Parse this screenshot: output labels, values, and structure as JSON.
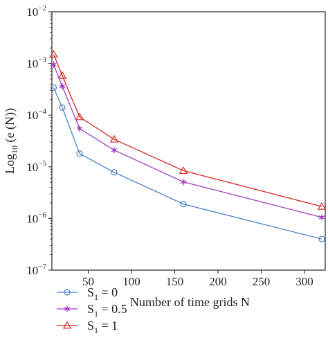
{
  "chart_data": {
    "type": "line",
    "ylabel": "Log10 (e (N))",
    "xlabel": "Number of time grids N",
    "xlim": [
      8,
      324
    ],
    "ylim": [
      1e-07,
      0.01
    ],
    "yscale": "log",
    "grid": false,
    "legend_position": "bottom-left",
    "x": [
      10,
      20,
      40,
      80,
      160,
      320
    ],
    "x_ticks": [
      50,
      100,
      150,
      200,
      250,
      300
    ],
    "y_ticks": [
      {
        "value": 1e-07,
        "base": "10",
        "exp": "−7"
      },
      {
        "value": 1e-06,
        "base": "10",
        "exp": "−6"
      },
      {
        "value": 1e-05,
        "base": "10",
        "exp": "−5"
      },
      {
        "value": 0.0001,
        "base": "10",
        "exp": "−4"
      },
      {
        "value": 0.001,
        "base": "10",
        "exp": "−3"
      },
      {
        "value": 0.01,
        "base": "10",
        "exp": "−2"
      }
    ],
    "series": [
      {
        "name": "S1 = 0",
        "sub": "1",
        "rest": " = 0",
        "marker": "circle",
        "color": "#4a7fc1",
        "values": [
          0.00034,
          0.00014,
          1.8e-05,
          7.8e-06,
          1.9e-06,
          4e-07
        ]
      },
      {
        "name": "S1 = 0.5",
        "sub": "1",
        "rest": " = 0.5",
        "marker": "star",
        "color": "#a040c8",
        "values": [
          0.00095,
          0.00036,
          5.5e-05,
          2.1e-05,
          5.1e-06,
          1.05e-06
        ]
      },
      {
        "name": "S1 = 1",
        "sub": "1",
        "rest": " = 1",
        "marker": "triangle",
        "color": "#d42a22",
        "values": [
          0.0015,
          0.00058,
          9.2e-05,
          3.4e-05,
          8.4e-06,
          1.7e-06
        ]
      }
    ]
  }
}
